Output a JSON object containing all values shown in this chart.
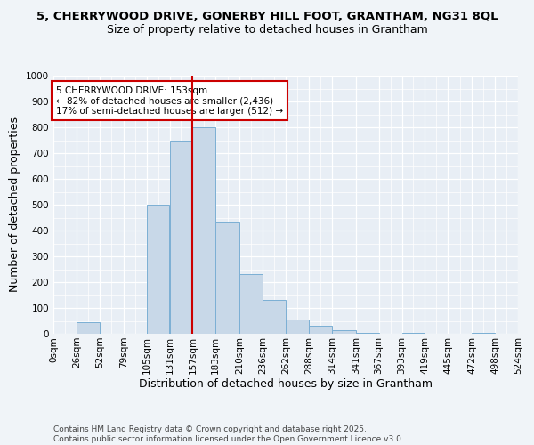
{
  "title_line1": "5, CHERRYWOOD DRIVE, GONERBY HILL FOOT, GRANTHAM, NG31 8QL",
  "title_line2": "Size of property relative to detached houses in Grantham",
  "xlabel": "Distribution of detached houses by size in Grantham",
  "ylabel": "Number of detached properties",
  "footnote": "Contains HM Land Registry data © Crown copyright and database right 2025.\nContains public sector information licensed under the Open Government Licence v3.0.",
  "bin_edges": [
    0,
    26,
    52,
    79,
    105,
    131,
    157,
    183,
    210,
    236,
    262,
    288,
    314,
    341,
    367,
    393,
    419,
    445,
    472,
    498,
    524
  ],
  "bin_labels": [
    "0sqm",
    "26sqm",
    "52sqm",
    "79sqm",
    "105sqm",
    "131sqm",
    "157sqm",
    "183sqm",
    "210sqm",
    "236sqm",
    "262sqm",
    "288sqm",
    "314sqm",
    "341sqm",
    "367sqm",
    "393sqm",
    "419sqm",
    "445sqm",
    "472sqm",
    "498sqm",
    "524sqm"
  ],
  "bar_heights": [
    0,
    45,
    0,
    0,
    500,
    750,
    800,
    435,
    230,
    130,
    55,
    30,
    15,
    5,
    0,
    5,
    0,
    0,
    5,
    0
  ],
  "bar_color": "#c8d8e8",
  "bar_edge_color": "#7bafd4",
  "property_line_x": 157,
  "property_size_sqm": 153,
  "pct_smaller": 82,
  "count_smaller": 2436,
  "pct_larger_semi": 17,
  "count_larger_semi": 512,
  "annotation_text": "5 CHERRYWOOD DRIVE: 153sqm\n← 82% of detached houses are smaller (2,436)\n17% of semi-detached houses are larger (512) →",
  "annotation_box_color": "#ffffff",
  "annotation_box_edge": "#cc0000",
  "vline_color": "#cc0000",
  "ylim": [
    0,
    1000
  ],
  "yticks": [
    0,
    100,
    200,
    300,
    400,
    500,
    600,
    700,
    800,
    900,
    1000
  ],
  "bg_color": "#e8eef5",
  "grid_color": "#ffffff",
  "fig_bg_color": "#f0f4f8",
  "title_fontsize": 9.5,
  "subtitle_fontsize": 9,
  "axis_label_fontsize": 9,
  "tick_fontsize": 7.5,
  "annotation_fontsize": 7.5,
  "footnote_fontsize": 6.5
}
